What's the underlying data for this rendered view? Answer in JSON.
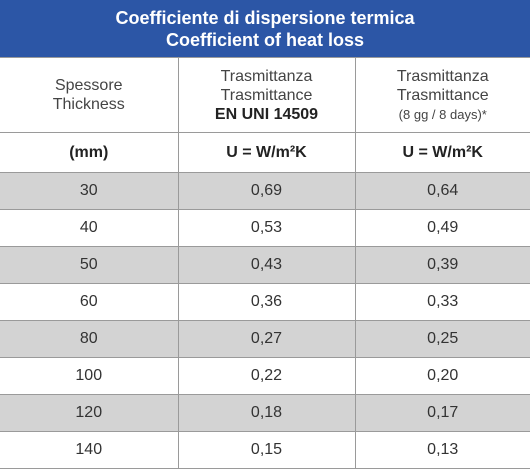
{
  "title": [
    "Coefficiente di dispersione termica",
    "Coefficient of heat loss"
  ],
  "table": {
    "header": [
      {
        "lines": [
          "Spessore",
          "Thickness"
        ]
      },
      {
        "lines": [
          "Trasmittanza",
          "Trasmittance"
        ],
        "strong": "EN UNI 14509"
      },
      {
        "lines": [
          "Trasmittanza",
          "Trasmittance"
        ],
        "note": "(8 gg / 8 days)*"
      }
    ],
    "units": [
      "(mm)",
      "U = W/m²K",
      "U = W/m²K"
    ],
    "rows": [
      [
        "30",
        "0,69",
        "0,64"
      ],
      [
        "40",
        "0,53",
        "0,49"
      ],
      [
        "50",
        "0,43",
        "0,39"
      ],
      [
        "60",
        "0,36",
        "0,33"
      ],
      [
        "80",
        "0,27",
        "0,25"
      ],
      [
        "100",
        "0,22",
        "0,20"
      ],
      [
        "120",
        "0,18",
        "0,17"
      ],
      [
        "140",
        "0,15",
        "0,13"
      ]
    ]
  }
}
